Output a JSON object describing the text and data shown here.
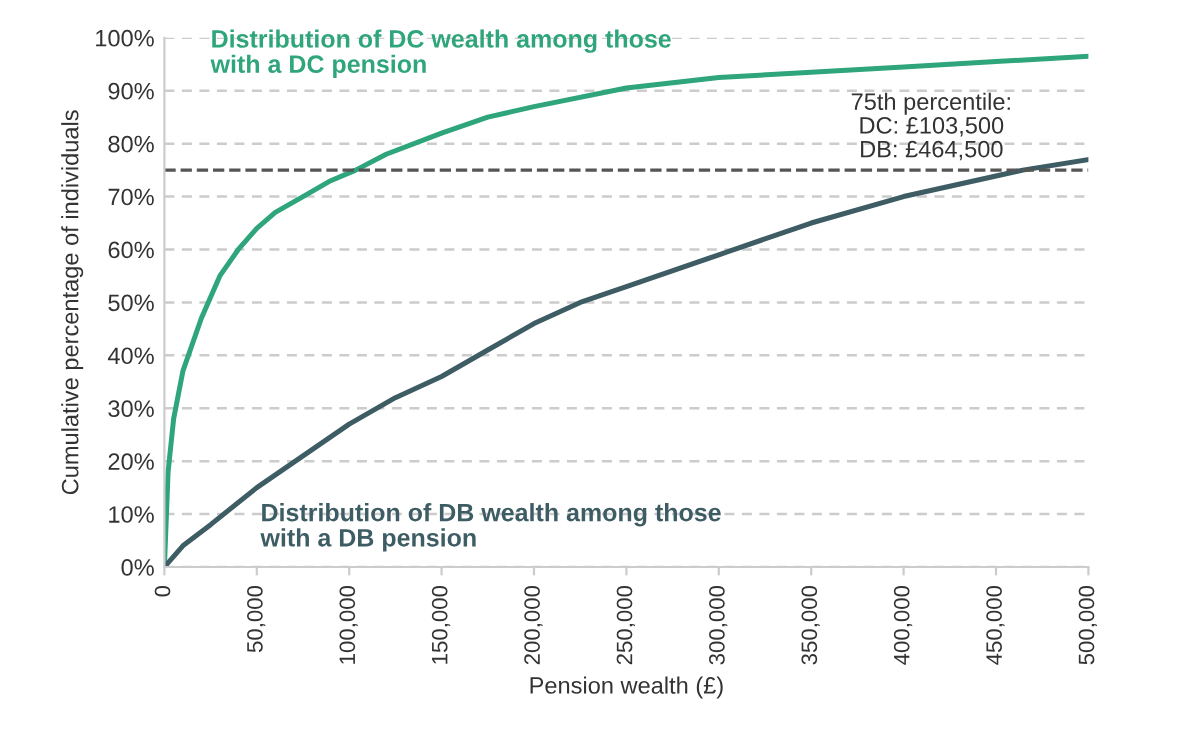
{
  "chart_data": {
    "type": "line",
    "xlabel": "Pension wealth (£)",
    "ylabel": "Cumulative percentage of individuals",
    "xlim": [
      0,
      500000
    ],
    "ylim": [
      0,
      100
    ],
    "xticks": [
      0,
      {
        "value": 50000,
        "label": "50,000"
      },
      {
        "value": 100000,
        "label": "100,000"
      },
      {
        "value": 150000,
        "label": "150,000"
      },
      {
        "value": 200000,
        "label": "200,000"
      },
      {
        "value": 250000,
        "label": "250,000"
      },
      {
        "value": 300000,
        "label": "300,000"
      },
      {
        "value": 350000,
        "label": "350,000"
      },
      {
        "value": 400000,
        "label": "400,000"
      },
      {
        "value": 450000,
        "label": "450,000"
      },
      {
        "value": 500000,
        "label": "500,000"
      }
    ],
    "yticks": [
      {
        "value": 0,
        "label": "0%"
      },
      {
        "value": 10,
        "label": "10%"
      },
      {
        "value": 20,
        "label": "20%"
      },
      {
        "value": 30,
        "label": "30%"
      },
      {
        "value": 40,
        "label": "40%"
      },
      {
        "value": 50,
        "label": "50%"
      },
      {
        "value": 60,
        "label": "60%"
      },
      {
        "value": 70,
        "label": "70%"
      },
      {
        "value": 80,
        "label": "80%"
      },
      {
        "value": 90,
        "label": "90%"
      },
      {
        "value": 100,
        "label": "100%"
      }
    ],
    "grid": "y",
    "legend": false,
    "marker": "none",
    "line_style": "solid",
    "x": [
      0,
      2000,
      5000,
      10000,
      20000,
      30000,
      40000,
      50000,
      60000,
      75000,
      90000,
      103500,
      120000,
      150000,
      175000,
      200000,
      250000,
      300000,
      350000,
      400000,
      450000,
      500000
    ],
    "series": [
      {
        "name": "Distribution of DC wealth among those\nwith a DC pension",
        "color": "#2ea57a",
        "values": [
          0,
          18,
          28,
          37,
          47,
          55,
          60,
          64,
          67,
          70,
          73,
          75,
          78,
          82,
          85,
          87,
          90.5,
          92.5,
          93.5,
          94.5,
          95.5,
          96.5
        ]
      },
      {
        "name": "Distribution of DB wealth among those\nwith a DB pension",
        "color": "#3d5c63",
        "x": [
          0,
          10000,
          25000,
          50000,
          75000,
          100000,
          125000,
          150000,
          175000,
          200000,
          225000,
          250000,
          300000,
          350000,
          400000,
          464500,
          500000
        ],
        "values": [
          0,
          4,
          8,
          15,
          21,
          27,
          32,
          36,
          41,
          46,
          50,
          53,
          59,
          65,
          70,
          75,
          77
        ]
      }
    ],
    "ref_lines": [
      {
        "axis": "y",
        "value": 75,
        "label": "75th percentile:\nDC: £103,500\nDB: £464,500",
        "color": "#555555",
        "line_style": "dashed"
      }
    ]
  }
}
